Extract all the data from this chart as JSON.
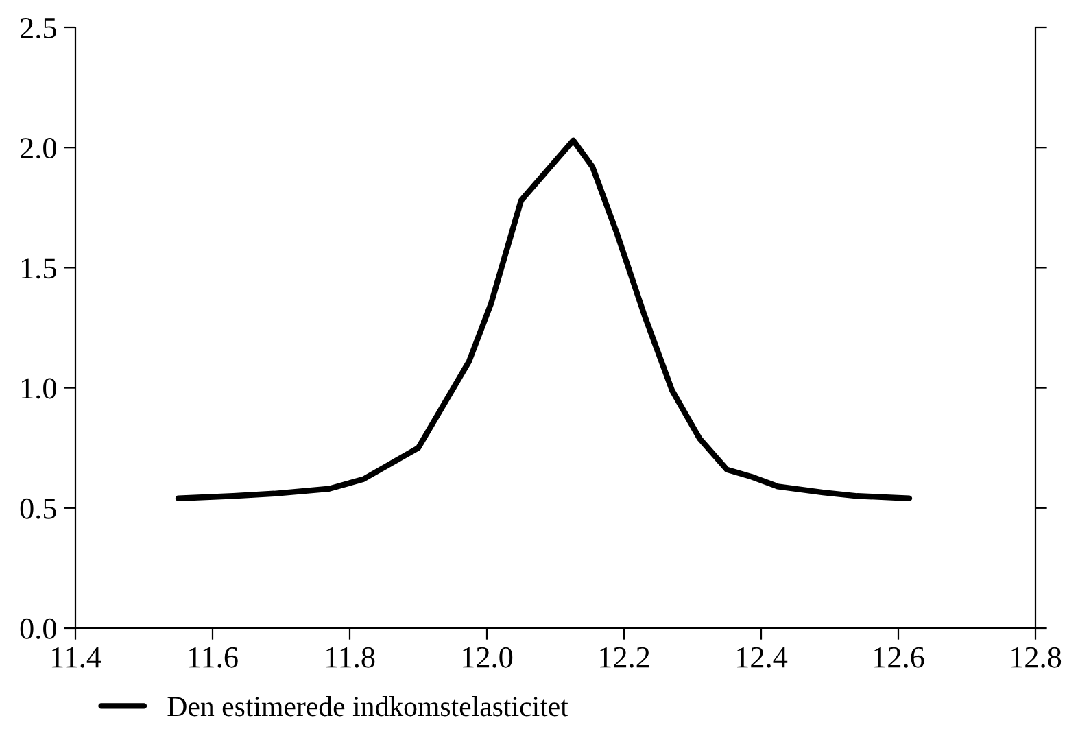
{
  "chart_data": {
    "type": "line",
    "x": [
      11.55,
      11.63,
      11.69,
      11.77,
      11.82,
      11.9,
      11.974,
      12.006,
      12.05,
      12.126,
      12.154,
      12.19,
      12.23,
      12.27,
      12.31,
      12.35,
      12.386,
      12.424,
      12.49,
      12.54,
      12.616
    ],
    "series": [
      {
        "name": "Den estimerede indkomstelasticitet",
        "color": "#000000",
        "values": [
          0.54,
          0.55,
          0.56,
          0.58,
          0.62,
          0.75,
          1.11,
          1.35,
          1.78,
          2.03,
          1.92,
          1.64,
          1.3,
          0.99,
          0.79,
          0.66,
          0.63,
          0.59,
          0.565,
          0.55,
          0.54
        ]
      }
    ],
    "xlim": [
      11.4,
      12.8
    ],
    "xticks": [
      {
        "value": 11.4,
        "label": "11.4"
      },
      {
        "value": 11.6,
        "label": "11.6"
      },
      {
        "value": 11.8,
        "label": "11.8"
      },
      {
        "value": 12.0,
        "label": "12.0"
      },
      {
        "value": 12.2,
        "label": "12.2"
      },
      {
        "value": 12.4,
        "label": "12.4"
      },
      {
        "value": 12.6,
        "label": "12.6"
      },
      {
        "value": 12.8,
        "label": "12.8"
      }
    ],
    "ylim": [
      0,
      2.5
    ],
    "yticks": [
      {
        "value": 0,
        "label": "0.0"
      },
      {
        "value": 0.5,
        "label": "0.5"
      },
      {
        "value": 1.0,
        "label": "1.0"
      },
      {
        "value": 1.5,
        "label": "1.5"
      },
      {
        "value": 2.0,
        "label": "2.0"
      },
      {
        "value": 2.5,
        "label": "2.5"
      }
    ],
    "legend": "bottom",
    "marker": "none",
    "line_style": "solid",
    "grid": false
  }
}
